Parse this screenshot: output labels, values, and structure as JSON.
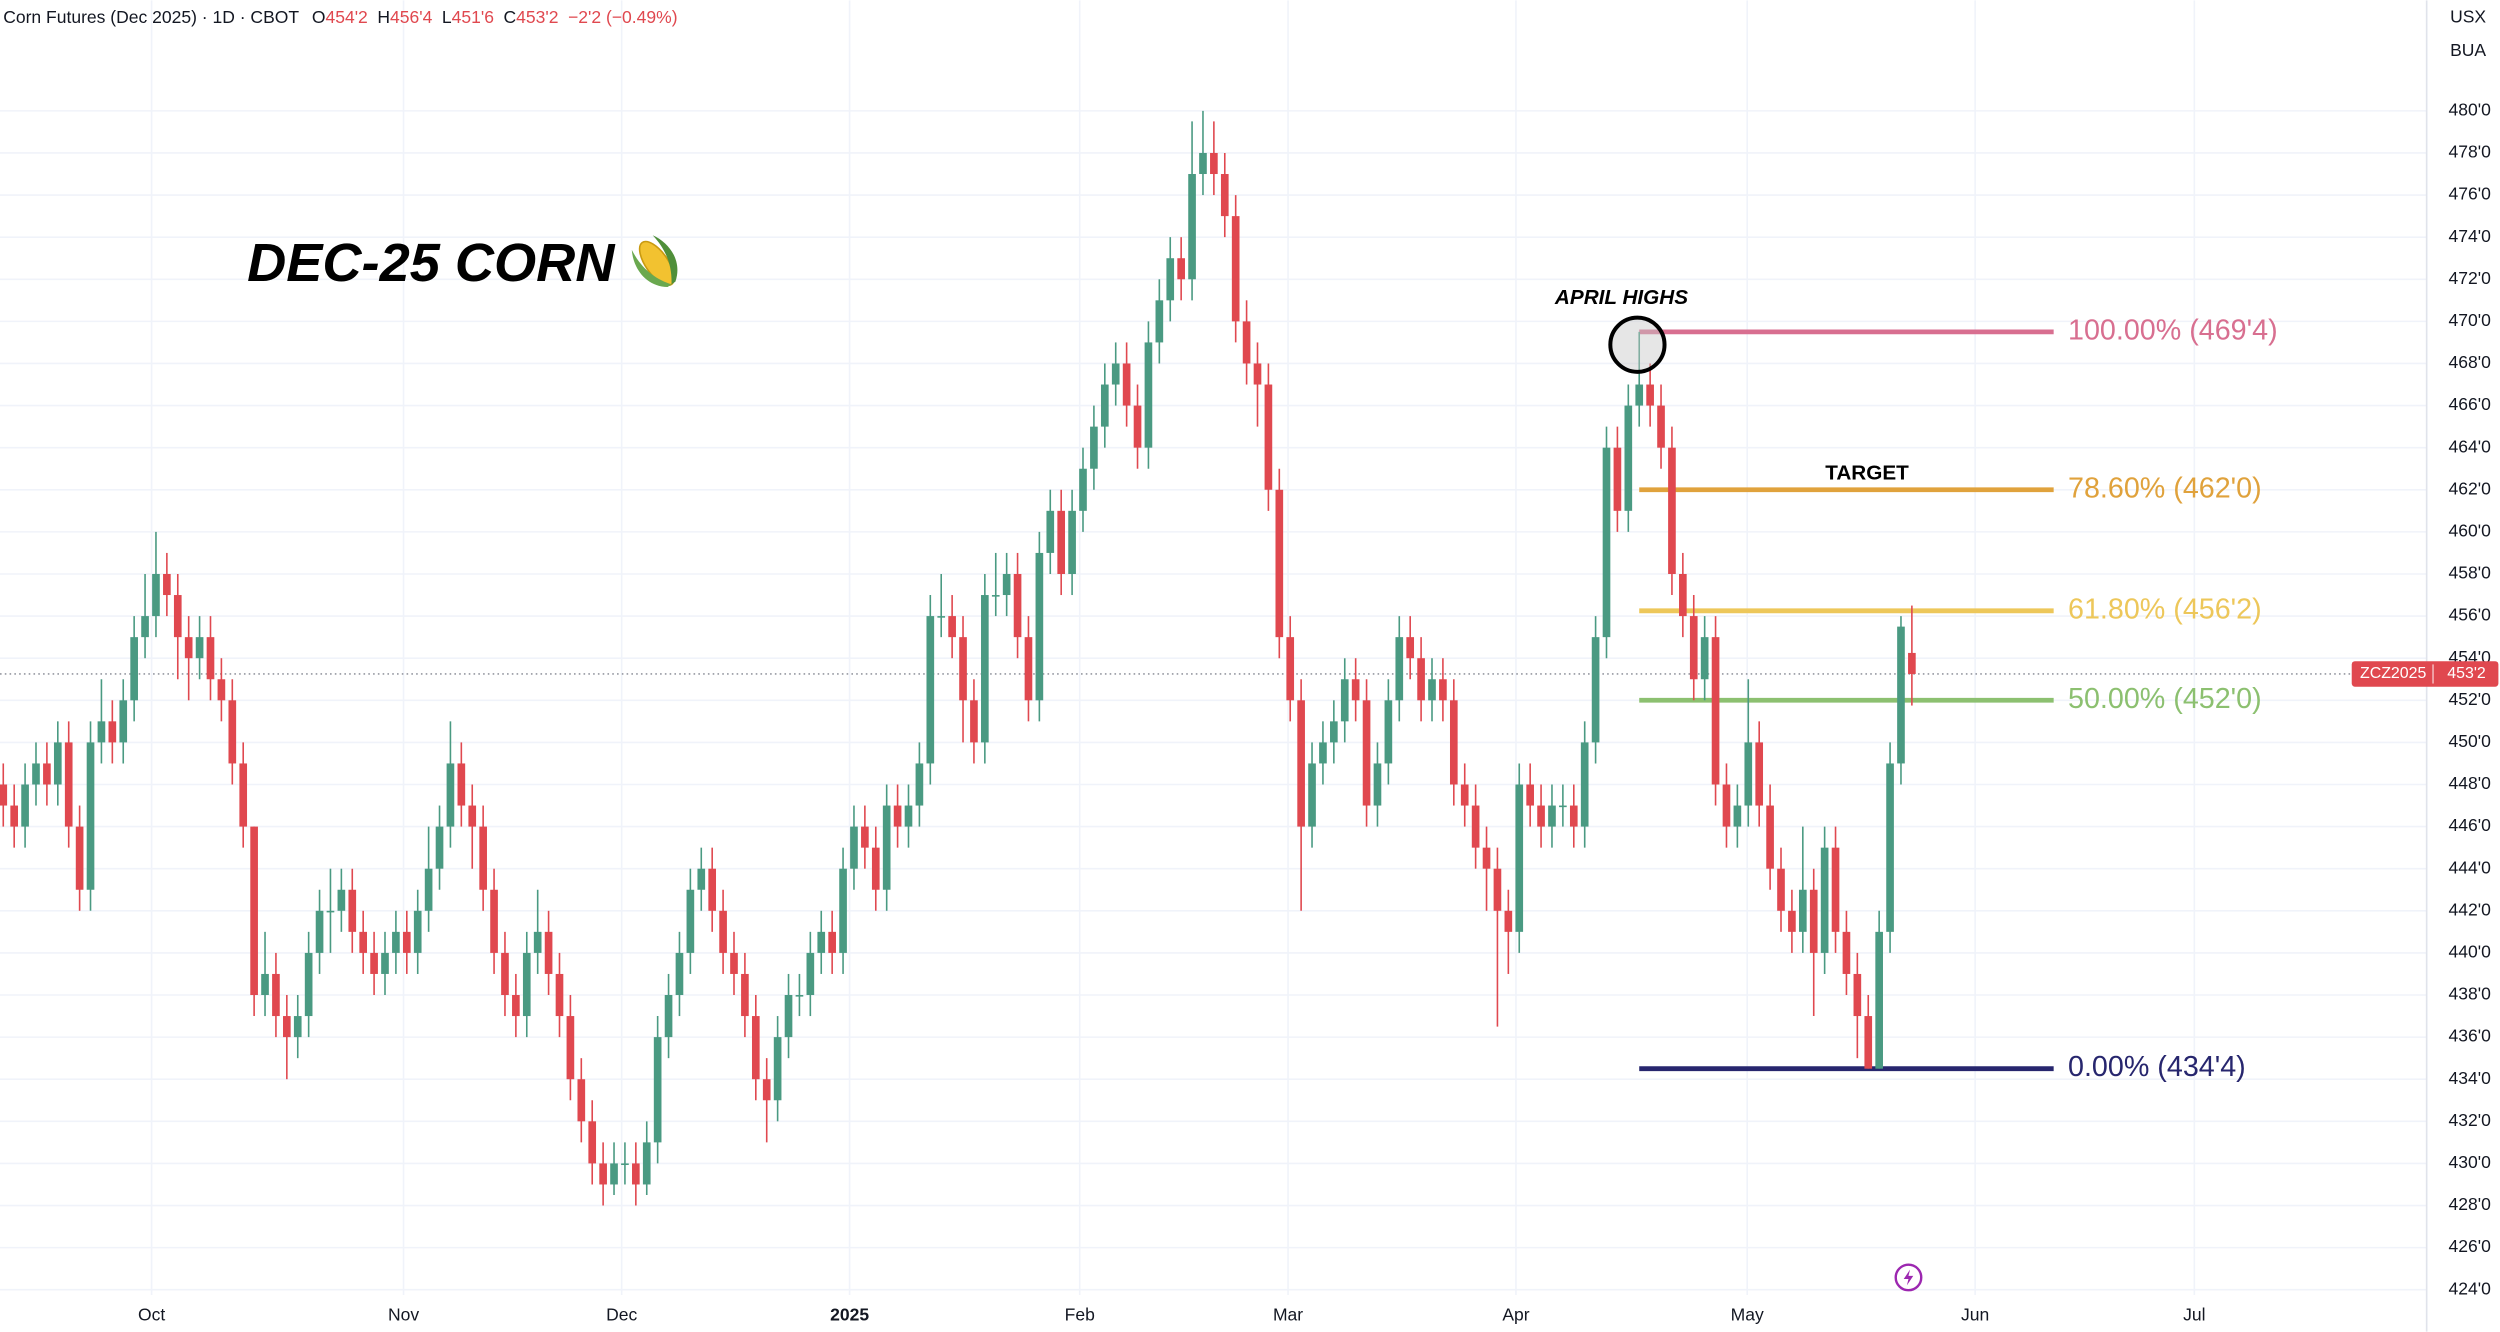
{
  "header": {
    "title": "Corn Futures (Dec 2025) · 1D · CBOT",
    "ohlc": [
      {
        "key": "O",
        "value": "454'2"
      },
      {
        "key": "H",
        "value": "456'4"
      },
      {
        "key": "L",
        "value": "451'6"
      },
      {
        "key": "C",
        "value": "453'2"
      }
    ],
    "change": "−2'2 (−0.49%)",
    "currency": "USX",
    "unit": "BUA"
  },
  "chart_data": {
    "type": "candlestick",
    "title": "DEC-25 CORN",
    "colors": {
      "up": "#4a9a82",
      "down": "#e0484f"
    },
    "xlim": [
      -0.3,
      222.2
    ],
    "xticks": [
      {
        "value": 13.6,
        "label": "Oct"
      },
      {
        "value": 36.7,
        "label": "Nov"
      },
      {
        "value": 56.7,
        "label": "Dec"
      },
      {
        "value": 77.6,
        "label": "2025"
      },
      {
        "value": 98.7,
        "label": "Feb"
      },
      {
        "value": 117.8,
        "label": "Mar"
      },
      {
        "value": 138.7,
        "label": "Apr"
      },
      {
        "value": 159.9,
        "label": "May"
      },
      {
        "value": 180.8,
        "label": "Jun"
      },
      {
        "value": 200.9,
        "label": "Jul"
      }
    ],
    "ylim": [
      423.75,
      485.25
    ],
    "yticks": [
      {
        "value": 424,
        "label": "424'0"
      },
      {
        "value": 426,
        "label": "426'0"
      },
      {
        "value": 428,
        "label": "428'0"
      },
      {
        "value": 430,
        "label": "430'0"
      },
      {
        "value": 432,
        "label": "432'0"
      },
      {
        "value": 434,
        "label": "434'0"
      },
      {
        "value": 436,
        "label": "436'0"
      },
      {
        "value": 438,
        "label": "438'0"
      },
      {
        "value": 440,
        "label": "440'0"
      },
      {
        "value": 442,
        "label": "442'0"
      },
      {
        "value": 444,
        "label": "444'0"
      },
      {
        "value": 446,
        "label": "446'0"
      },
      {
        "value": 448,
        "label": "448'0"
      },
      {
        "value": 450,
        "label": "450'0"
      },
      {
        "value": 452,
        "label": "452'0"
      },
      {
        "value": 454,
        "label": "454'0"
      },
      {
        "value": 456,
        "label": "456'0"
      },
      {
        "value": 458,
        "label": "458'0"
      },
      {
        "value": 460,
        "label": "460'0"
      },
      {
        "value": 462,
        "label": "462'0"
      },
      {
        "value": 464,
        "label": "464'0"
      },
      {
        "value": 466,
        "label": "466'0"
      },
      {
        "value": 468,
        "label": "468'0"
      },
      {
        "value": 470,
        "label": "470'0"
      },
      {
        "value": 472,
        "label": "472'0"
      },
      {
        "value": 474,
        "label": "474'0"
      },
      {
        "value": 476,
        "label": "476'0"
      },
      {
        "value": 478,
        "label": "478'0"
      },
      {
        "value": 480,
        "label": "480'0"
      }
    ],
    "grid": true,
    "open": [
      448,
      447,
      446,
      448,
      449,
      448,
      450,
      446,
      443,
      450,
      451,
      450,
      452,
      455,
      456,
      458,
      457,
      455,
      454,
      455,
      453,
      452,
      449,
      446,
      438,
      439,
      437,
      436,
      437,
      440,
      442,
      442,
      443,
      441,
      440,
      439,
      440,
      441,
      440,
      442,
      444,
      446,
      449,
      447,
      446,
      443,
      440,
      438,
      437,
      440,
      441,
      439,
      437,
      434,
      432,
      430,
      429,
      430,
      430,
      429,
      431,
      436,
      438,
      440,
      443,
      444,
      442,
      440,
      439,
      437,
      434,
      433,
      436,
      438,
      438,
      440,
      441,
      440,
      444,
      446,
      445,
      443,
      447,
      446,
      447,
      449,
      456,
      456,
      455,
      452,
      450,
      457,
      457,
      458,
      455,
      452,
      459,
      461,
      458,
      461,
      463,
      465,
      467,
      468,
      466,
      464,
      469,
      471,
      473,
      472,
      477,
      478,
      477,
      475,
      470,
      468,
      467,
      462,
      455,
      452,
      446,
      449,
      450,
      451,
      453,
      452,
      447,
      449,
      452,
      455,
      454,
      452,
      453,
      452,
      448,
      447,
      445,
      444,
      442,
      441,
      448,
      447,
      446,
      447,
      447,
      446,
      450,
      455,
      464,
      461,
      466,
      467,
      466,
      464,
      458,
      456,
      453,
      455,
      448,
      446,
      447,
      450,
      447,
      444,
      442,
      441,
      443,
      440,
      445,
      441,
      439,
      437,
      434.5,
      441,
      449,
      454.25
    ],
    "high": [
      449,
      448,
      449,
      450,
      450,
      451,
      451,
      447,
      451,
      453,
      452,
      453,
      456,
      458,
      460,
      459,
      458,
      456,
      456,
      456,
      454,
      453,
      450,
      446,
      441,
      440,
      438,
      438,
      441,
      443,
      444,
      444,
      444,
      442,
      441,
      441,
      442,
      442,
      443,
      446,
      447,
      451,
      450,
      448,
      447,
      444,
      441,
      439,
      441,
      443,
      442,
      440,
      438,
      435,
      433,
      431,
      431,
      431,
      431,
      432,
      437,
      439,
      441,
      444,
      445,
      445,
      443,
      441,
      440,
      438,
      435,
      437,
      439,
      439,
      441,
      442,
      442,
      445,
      447,
      447,
      446,
      448,
      448,
      448,
      450,
      457,
      458,
      457,
      456,
      453,
      458,
      459,
      459,
      459,
      456,
      460,
      462,
      462,
      462,
      464,
      466,
      468,
      469,
      469,
      467,
      470,
      472,
      474,
      474,
      479.5,
      480,
      479.5,
      478,
      476,
      471,
      469,
      468,
      463,
      456,
      453,
      450,
      451,
      452,
      454,
      454,
      453,
      450,
      453,
      456,
      456,
      455,
      454,
      454,
      453,
      449,
      448,
      446,
      445,
      443,
      449,
      449,
      448,
      448,
      448,
      448,
      451,
      456,
      465,
      465,
      467,
      469.5,
      468,
      467,
      465,
      459,
      457,
      456,
      456,
      449,
      448,
      453,
      451,
      448,
      445,
      443,
      446,
      444,
      446,
      446,
      442,
      440,
      438,
      442,
      450,
      456,
      456.5
    ],
    "low": [
      446,
      445,
      445,
      447,
      447,
      447,
      445,
      442,
      442,
      449,
      449,
      449,
      451,
      454,
      455,
      456,
      453,
      452,
      453,
      452,
      451,
      448,
      445,
      437,
      437,
      436,
      434,
      435,
      436,
      439,
      440,
      441,
      440,
      439,
      438,
      438,
      439,
      439,
      439,
      441,
      443,
      445,
      446,
      444,
      442,
      439,
      437,
      436,
      436,
      439,
      438,
      436,
      433,
      431,
      429,
      428,
      428.5,
      429,
      428,
      428.5,
      430,
      435,
      437,
      439,
      442,
      441,
      439,
      438,
      436,
      433,
      431,
      432,
      435,
      437,
      437,
      439,
      439,
      439,
      443,
      444,
      442,
      442,
      445,
      445,
      446,
      448,
      455,
      454,
      450,
      449,
      449,
      456,
      456,
      454,
      451,
      451,
      458,
      457,
      457,
      460,
      462,
      464,
      466,
      465,
      463,
      463,
      468,
      470,
      471,
      471,
      476,
      476,
      474,
      469,
      467,
      465,
      461,
      454,
      451,
      442,
      445,
      448,
      449,
      450,
      451,
      446,
      446,
      448,
      451,
      453,
      451,
      451,
      451,
      447,
      446,
      444,
      442,
      436.5,
      439,
      440,
      446,
      445,
      445,
      446,
      445,
      445,
      449,
      454,
      460,
      460,
      465,
      465,
      463,
      457,
      455,
      452,
      452,
      447,
      445,
      445,
      446,
      446,
      443,
      441,
      440,
      440,
      437,
      439,
      440,
      438,
      435,
      434.5,
      434.5,
      440,
      448,
      451.75
    ],
    "close": [
      447,
      446,
      448,
      449,
      448,
      450,
      446,
      443,
      450,
      451,
      450,
      452,
      455,
      456,
      458,
      457,
      455,
      454,
      455,
      453,
      452,
      449,
      446,
      438,
      439,
      437,
      436,
      437,
      440,
      442,
      442,
      443,
      441,
      440,
      439,
      440,
      441,
      440,
      442,
      444,
      446,
      449,
      447,
      446,
      443,
      440,
      438,
      437,
      440,
      441,
      439,
      437,
      434,
      432,
      430,
      429,
      430,
      430,
      429,
      431,
      436,
      438,
      440,
      443,
      444,
      442,
      440,
      439,
      437,
      434,
      433,
      436,
      438,
      438,
      440,
      441,
      440,
      444,
      446,
      445,
      443,
      447,
      446,
      447,
      449,
      456,
      456,
      455,
      452,
      450,
      457,
      457,
      458,
      455,
      452,
      459,
      461,
      458,
      461,
      463,
      465,
      467,
      468,
      466,
      464,
      469,
      471,
      473,
      472,
      477,
      478,
      477,
      475,
      470,
      468,
      467,
      462,
      455,
      452,
      446,
      449,
      450,
      451,
      453,
      452,
      447,
      449,
      452,
      455,
      454,
      452,
      453,
      452,
      448,
      447,
      445,
      444,
      442,
      441,
      448,
      447,
      446,
      447,
      447,
      446,
      450,
      455,
      464,
      461,
      466,
      467,
      466,
      464,
      458,
      456,
      453,
      455,
      448,
      446,
      447,
      450,
      447,
      444,
      442,
      441,
      443,
      440,
      445,
      441,
      439,
      437,
      434.5,
      441,
      449,
      455.5,
      453.25
    ],
    "fib_range": [
      150,
      188
    ],
    "fib_levels": [
      {
        "label": "100.00% (469'4)",
        "value": 469.5,
        "color": "#d86f90"
      },
      {
        "label": "78.60% (462'0)",
        "value": 462,
        "color": "#e0a23c"
      },
      {
        "label": "61.80% (456'2)",
        "value": 456.25,
        "color": "#edc75a"
      },
      {
        "label": "50.00% (452'0)",
        "value": 452,
        "color": "#8cc070"
      },
      {
        "label": "0.00% (434'4)",
        "value": 434.5,
        "color": "#27266e"
      }
    ],
    "annotations": [
      "APRIL HIGHS",
      "TARGET"
    ],
    "last_price": {
      "symbol": "ZCZ2025",
      "value": 453.25,
      "label": "453'2",
      "color": "#e0484f"
    }
  }
}
